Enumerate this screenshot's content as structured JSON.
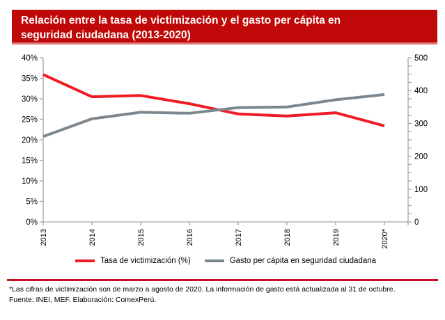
{
  "header": {
    "title": "Relación entre la tasa de victimización y el gasto per cápita en seguridad ciudadana (2013-2020)"
  },
  "colors": {
    "banner_red": "#c10808",
    "rule_red": "#cb0e22",
    "axis_gray": "#a6a6a6",
    "victimization_red": "#ee1c25",
    "spending_gray": "#7c878e",
    "text_black": "#000000"
  },
  "chart_data": {
    "type": "line",
    "categories": [
      "2013",
      "2014",
      "2015",
      "2016",
      "2017",
      "2018",
      "2019",
      "2020*"
    ],
    "series": [
      {
        "name": "Tasa de victimización (%)",
        "axis": "left",
        "color": "#ee1c25",
        "values": [
          35.9,
          30.5,
          30.8,
          28.8,
          26.3,
          25.8,
          26.6,
          23.4
        ]
      },
      {
        "name": "Gasto per cápita en seguridad ciudadana",
        "axis": "right",
        "color": "#7c878e",
        "values": [
          260,
          314,
          334,
          331,
          348,
          350,
          372,
          388
        ]
      }
    ],
    "left_axis": {
      "min": 0,
      "max": 40,
      "step": 5,
      "unit": "%",
      "tick_labels": [
        "0%",
        "5%",
        "10%",
        "15%",
        "20%",
        "25%",
        "30%",
        "35%",
        "40%"
      ]
    },
    "right_axis": {
      "min": 0,
      "max": 500,
      "label_step": 100,
      "tick_step": 25,
      "tick_labels": [
        "0",
        "100",
        "200",
        "300",
        "400",
        "500"
      ]
    },
    "grid": false,
    "legend_position": "bottom"
  },
  "footnote": {
    "note": "*Las cifras de victimización son de marzo a agosto de 2020. La información de gasto está actualizada al 31 de octubre.",
    "source": "Fuente: INEI, MEF. Elaboración: ComexPerú."
  }
}
